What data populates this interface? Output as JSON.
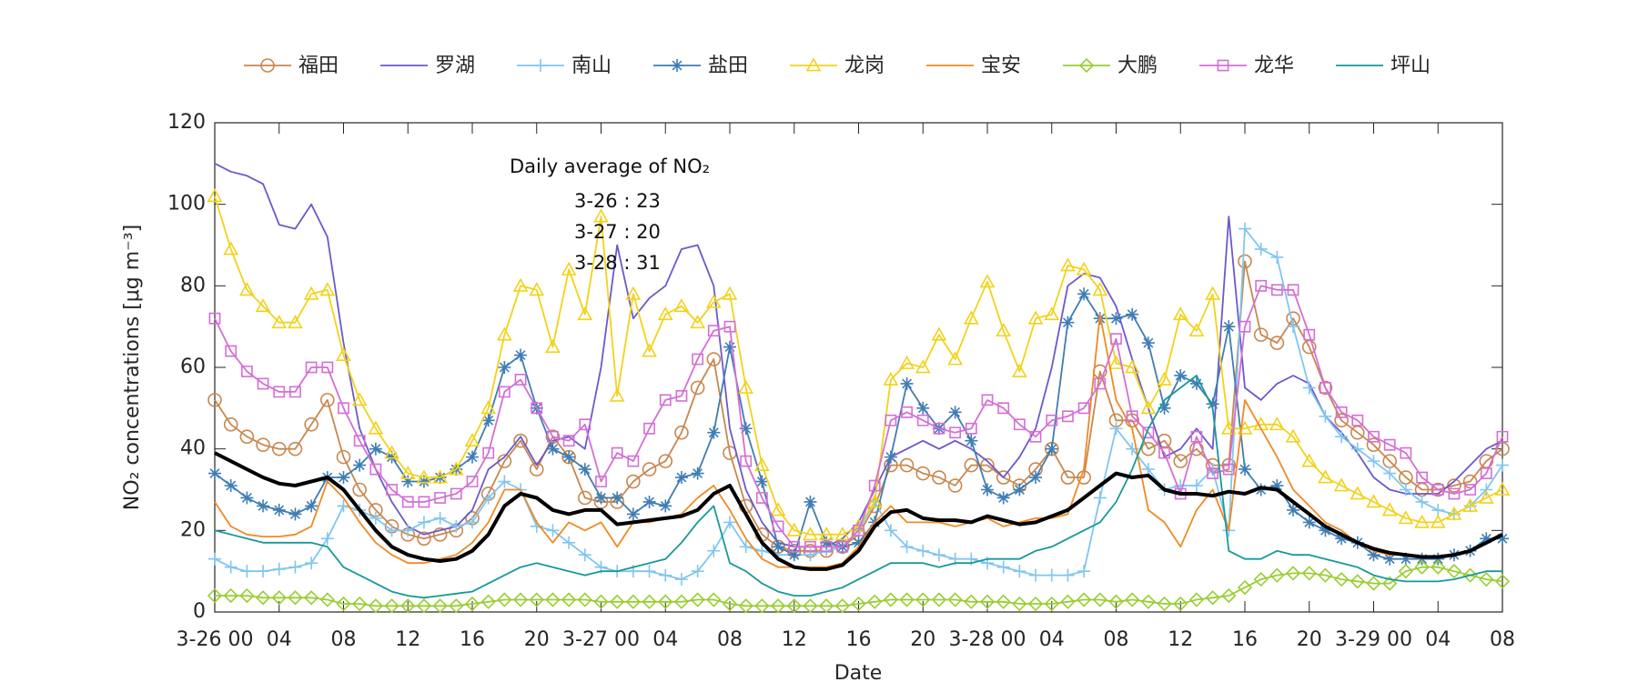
{
  "chart_data": {
    "type": "line",
    "xlabel": "Date",
    "ylabel": "NO₂ concentrations [μg m⁻³]",
    "annotations": [
      "Daily average of NO₂",
      "3-26 : 23",
      "3-27 : 20",
      "3-28 : 31"
    ],
    "legend": "top",
    "xlim": [
      0,
      80
    ],
    "ylim": [
      0,
      120
    ],
    "yticks": [
      0,
      20,
      40,
      60,
      80,
      100,
      120
    ],
    "xticks": [
      {
        "value": 0,
        "label": "3-26 00"
      },
      {
        "value": 4,
        "label": "04"
      },
      {
        "value": 8,
        "label": "08"
      },
      {
        "value": 12,
        "label": "12"
      },
      {
        "value": 16,
        "label": "16"
      },
      {
        "value": 20,
        "label": "20"
      },
      {
        "value": 24,
        "label": "3-27 00"
      },
      {
        "value": 28,
        "label": "04"
      },
      {
        "value": 32,
        "label": "08"
      },
      {
        "value": 36,
        "label": "12"
      },
      {
        "value": 40,
        "label": "16"
      },
      {
        "value": 44,
        "label": "20"
      },
      {
        "value": 48,
        "label": "3-28 00"
      },
      {
        "value": 52,
        "label": "04"
      },
      {
        "value": 56,
        "label": "08"
      },
      {
        "value": 60,
        "label": "12"
      },
      {
        "value": 64,
        "label": "16"
      },
      {
        "value": 68,
        "label": "20"
      },
      {
        "value": 72,
        "label": "3-29 00"
      },
      {
        "value": 76,
        "label": "04"
      },
      {
        "value": 80,
        "label": "08"
      }
    ],
    "x": [
      0,
      1,
      2,
      3,
      4,
      5,
      6,
      7,
      8,
      9,
      10,
      11,
      12,
      13,
      14,
      15,
      16,
      17,
      18,
      19,
      20,
      21,
      22,
      23,
      24,
      25,
      26,
      27,
      28,
      29,
      30,
      31,
      32,
      33,
      34,
      35,
      36,
      37,
      38,
      39,
      40,
      41,
      42,
      43,
      44,
      45,
      46,
      47,
      48,
      49,
      50,
      51,
      52,
      53,
      54,
      55,
      56,
      57,
      58,
      59,
      60,
      61,
      62,
      63,
      64,
      65,
      66,
      67,
      68,
      69,
      70,
      71,
      72,
      73,
      74,
      75,
      76,
      77,
      78,
      79,
      80
    ],
    "series": [
      {
        "name": "福田",
        "color": "#c8874e",
        "marker": "circle",
        "values": [
          52,
          46,
          43,
          41,
          40,
          40,
          46,
          52,
          38,
          30,
          25,
          21,
          19,
          18,
          19,
          20,
          23,
          29,
          37,
          42,
          35,
          43,
          38,
          28,
          27,
          27,
          32,
          35,
          37,
          44,
          55,
          62,
          39,
          26,
          19,
          16,
          15,
          15,
          15,
          16,
          19,
          26,
          36,
          36,
          34,
          33,
          31,
          36,
          36,
          33,
          31,
          35,
          40,
          33,
          33,
          59,
          47,
          47,
          40,
          42,
          37,
          40,
          36,
          36,
          86,
          68,
          66,
          72,
          65,
          55,
          47,
          44,
          41,
          37,
          33,
          30,
          30,
          31,
          32,
          37,
          40
        ]
      },
      {
        "name": "罗湖",
        "color": "#6b59cc",
        "marker": "none",
        "values": [
          110,
          108,
          107,
          105,
          95,
          94,
          100,
          92,
          66,
          45,
          35,
          27,
          21,
          19,
          20,
          21,
          25,
          35,
          38,
          43,
          36,
          42,
          43,
          40,
          60,
          90,
          72,
          77,
          80,
          89,
          90,
          80,
          45,
          30,
          22,
          17,
          16,
          16,
          16,
          18,
          22,
          30,
          38,
          40,
          42,
          40,
          42,
          40,
          37,
          33,
          38,
          45,
          60,
          80,
          83,
          82,
          75,
          62,
          50,
          38,
          40,
          45,
          40,
          97,
          55,
          52,
          56,
          58,
          56,
          48,
          44,
          39,
          33,
          30,
          29,
          29,
          29,
          32,
          36,
          40,
          42
        ]
      },
      {
        "name": "南山",
        "color": "#80c6f0",
        "marker": "plus",
        "values": [
          13,
          11,
          10,
          10,
          10.5,
          11,
          12,
          18,
          26,
          25,
          23,
          20,
          20,
          22,
          23,
          21,
          22,
          28,
          32,
          30,
          21,
          20,
          17,
          14,
          11,
          10,
          10,
          10,
          9,
          8,
          10,
          15,
          22,
          16,
          15,
          14,
          14,
          14,
          15,
          16,
          20,
          27,
          20,
          16,
          15,
          14,
          13,
          13,
          12,
          11,
          10,
          9,
          9,
          9,
          10,
          28,
          45,
          40,
          35,
          30,
          31,
          31,
          35,
          20,
          94,
          89,
          87,
          70,
          55,
          48,
          43,
          40,
          37,
          34,
          30,
          27,
          25,
          24,
          26,
          30,
          36
        ]
      },
      {
        "name": "盐田",
        "color": "#3f7db3",
        "marker": "asterisk",
        "values": [
          34,
          31,
          28,
          26,
          25,
          24,
          26,
          33,
          33,
          36,
          40,
          38,
          32,
          32,
          33,
          35,
          38,
          47,
          60,
          63,
          50,
          40,
          38,
          35,
          28,
          28,
          24,
          27,
          26,
          33,
          34,
          44,
          65,
          45,
          32,
          16,
          14,
          27,
          17,
          16,
          17,
          22,
          38,
          56,
          50,
          45,
          49,
          42,
          30,
          28,
          30,
          33,
          40,
          71,
          78,
          72,
          72,
          73,
          66,
          50,
          58,
          56,
          51,
          70,
          35,
          30,
          31,
          25,
          22,
          20,
          18,
          17,
          14,
          13,
          13,
          13,
          13,
          14,
          15,
          18,
          18
        ]
      },
      {
        "name": "龙岗",
        "color": "#f2d21a",
        "marker": "triangle",
        "values": [
          102,
          89,
          79,
          75,
          71,
          71,
          78,
          79,
          63,
          52,
          45,
          39,
          34,
          33,
          33,
          35,
          42,
          50,
          68,
          80,
          79,
          65,
          84,
          73,
          97,
          53,
          78,
          64,
          73,
          75,
          71,
          76,
          78,
          55,
          36,
          25,
          20,
          19,
          19,
          19,
          21,
          27,
          57,
          61,
          60,
          68,
          62,
          72,
          81,
          69,
          59,
          72,
          73,
          85,
          84,
          79,
          61,
          60,
          50,
          57,
          73,
          69,
          78,
          45,
          45,
          46,
          46,
          43,
          37,
          33,
          31,
          29,
          27,
          25,
          23,
          22,
          22,
          24,
          26,
          28,
          30
        ]
      },
      {
        "name": "宝安",
        "color": "#f08a24",
        "marker": "none",
        "values": [
          27,
          21,
          19,
          18.5,
          18.5,
          19,
          21,
          32,
          28,
          22,
          17,
          14,
          12,
          12,
          13,
          14,
          17,
          22,
          30,
          30,
          22,
          17,
          22,
          20,
          22,
          16,
          22,
          22,
          23,
          24,
          28,
          31,
          25,
          18,
          13,
          11,
          11,
          11,
          11,
          12,
          16,
          22,
          26,
          22,
          22,
          22,
          21,
          22,
          23,
          21,
          22,
          23,
          23,
          24,
          35,
          73,
          52,
          45,
          25,
          22,
          16,
          25,
          30,
          20,
          52,
          45,
          38,
          30,
          26,
          22,
          20,
          17,
          15,
          14,
          14,
          13.5,
          13.5,
          14,
          15,
          17,
          19
        ]
      },
      {
        "name": "大鹏",
        "color": "#9acd32",
        "marker": "diamond",
        "values": [
          4,
          4,
          4,
          3.5,
          3.5,
          3.5,
          3.5,
          3,
          2,
          2,
          1.5,
          1.5,
          1.5,
          1.5,
          1.5,
          1.5,
          2,
          2.5,
          3,
          3,
          3,
          3,
          3,
          3,
          2.5,
          2.5,
          2.5,
          2.5,
          2.5,
          2.5,
          3,
          3,
          2,
          1.5,
          1.5,
          1.5,
          1.5,
          1.5,
          1.5,
          1.5,
          2,
          2.5,
          3,
          3,
          3,
          3,
          3,
          2.5,
          2.5,
          2.5,
          2,
          2,
          2,
          2.5,
          3,
          3,
          2.5,
          3,
          2.5,
          2,
          2,
          3,
          3.5,
          4,
          6,
          8,
          9,
          9.5,
          9.5,
          9,
          8,
          7.5,
          7,
          7,
          10,
          11,
          11,
          10,
          9,
          8,
          7.5
        ]
      },
      {
        "name": "龙华",
        "color": "#d46fd5",
        "marker": "square",
        "values": [
          72,
          64,
          59,
          56,
          54,
          54,
          60,
          60,
          50,
          42,
          35,
          30,
          27,
          27,
          28,
          29,
          32,
          39,
          54,
          57,
          50,
          43,
          42,
          46,
          32,
          39,
          37,
          45,
          52,
          53,
          62,
          69,
          70,
          37,
          28,
          21,
          16,
          16,
          16,
          16,
          20,
          31,
          47,
          49,
          47,
          45,
          44,
          45,
          52,
          50,
          46,
          43,
          47,
          48,
          50,
          56,
          67,
          48,
          44,
          39,
          29,
          43,
          34,
          35,
          70,
          80,
          79,
          79,
          68,
          55,
          49,
          47,
          43,
          41,
          39,
          33,
          30,
          29,
          30,
          34,
          43
        ]
      },
      {
        "name": "坪山",
        "color": "#17999a",
        "marker": "none",
        "values": [
          20,
          19,
          18,
          17,
          17,
          17,
          17,
          16,
          11,
          9,
          7,
          5,
          4,
          3.5,
          4,
          4.5,
          5,
          7,
          9,
          11,
          12,
          11,
          10,
          9,
          10,
          10,
          11,
          12,
          13,
          17,
          22,
          26,
          12,
          10,
          7,
          5,
          4,
          4,
          5,
          6,
          8,
          10,
          12,
          12,
          12,
          11,
          12,
          12,
          13,
          13,
          13,
          15,
          16,
          18,
          20,
          22,
          27,
          35,
          45,
          52,
          55,
          58,
          50,
          15,
          13,
          13,
          15,
          14,
          14,
          13,
          12,
          11,
          9,
          8,
          7.5,
          7.5,
          7.5,
          8,
          9,
          10,
          10
        ]
      }
    ],
    "average": {
      "color": "#000000",
      "values": [
        39,
        37,
        35,
        33,
        31.5,
        31,
        32,
        33,
        30,
        25,
        20,
        16,
        14,
        13,
        12.5,
        13,
        15,
        19,
        26,
        29,
        28,
        25,
        24,
        25,
        25,
        21.5,
        22,
        22.5,
        23,
        23.5,
        25,
        29,
        31,
        24,
        17,
        13,
        11,
        10.5,
        10.5,
        11.5,
        15,
        21,
        24.5,
        25,
        23,
        22.5,
        22.5,
        22,
        23.5,
        22.5,
        21.5,
        22,
        23.5,
        25,
        28,
        31,
        34,
        33,
        33.5,
        30,
        29,
        29,
        28.5,
        29.5,
        29,
        30.5,
        30,
        27,
        24,
        21,
        19,
        17,
        15.5,
        14.5,
        14,
        13.5,
        13.5,
        14,
        15,
        17,
        19
      ]
    }
  }
}
